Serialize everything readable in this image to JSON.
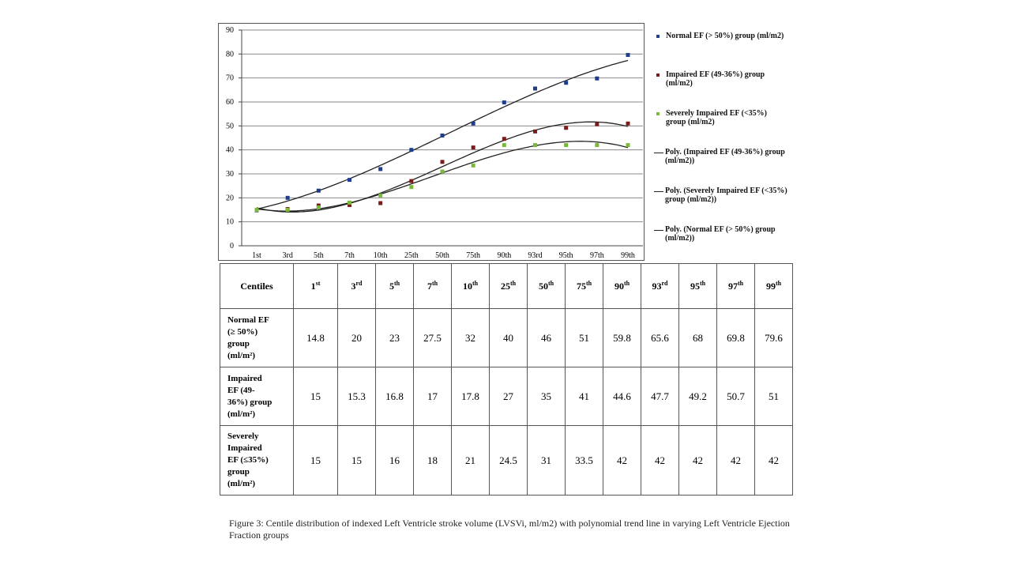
{
  "chart_data": {
    "type": "scatter",
    "categories": [
      "1st",
      "3rd",
      "5th",
      "7th",
      "10th",
      "25th",
      "50th",
      "75th",
      "90th",
      "93rd",
      "95th",
      "97th",
      "99th"
    ],
    "ylim": [
      0,
      90
    ],
    "yticks": [
      0,
      10,
      20,
      30,
      40,
      50,
      60,
      70,
      80,
      90
    ],
    "grid": true,
    "legend_position": "right",
    "series": [
      {
        "name": "Normal EF (> 50%) group (ml/m2)",
        "color": "#1f3d8f",
        "values": [
          14.8,
          20,
          23,
          27.5,
          32,
          40,
          46,
          51,
          59.8,
          65.6,
          68,
          69.8,
          79.6
        ]
      },
      {
        "name": "Impaired EF (49-36%) group (ml/m2)",
        "color": "#7b1c1c",
        "values": [
          15,
          15.3,
          16.8,
          17,
          17.8,
          27,
          35,
          41,
          44.6,
          47.7,
          49.2,
          50.7,
          51
        ]
      },
      {
        "name": "Severely Impaired EF (<35%) group (ml/m2)",
        "color": "#7ab83a",
        "values": [
          15,
          15,
          16,
          18,
          21,
          24.5,
          31,
          33.5,
          42,
          42,
          42,
          42,
          42
        ]
      }
    ],
    "trendlines": [
      {
        "name": "Poly. (Impaired EF (49-36%) group (ml/m2))",
        "color": "#222222"
      },
      {
        "name": "Poly. (Severely Impaired EF (<35%) group (ml/m2))",
        "color": "#222222"
      },
      {
        "name": "Poly. (Normal EF (> 50%) group (ml/m2))",
        "color": "#222222"
      }
    ]
  },
  "table": {
    "corner": "Centiles",
    "headers": [
      {
        "num": "1",
        "sup": "st"
      },
      {
        "num": "3",
        "sup": "rd"
      },
      {
        "num": "5",
        "sup": "th"
      },
      {
        "num": "7",
        "sup": "th"
      },
      {
        "num": "10",
        "sup": "th"
      },
      {
        "num": "25",
        "sup": "th"
      },
      {
        "num": "50",
        "sup": "th"
      },
      {
        "num": "75",
        "sup": "th"
      },
      {
        "num": "90",
        "sup": "th"
      },
      {
        "num": "93",
        "sup": "rd"
      },
      {
        "num": "95",
        "sup": "th"
      },
      {
        "num": "97",
        "sup": "th"
      },
      {
        "num": "99",
        "sup": "th"
      }
    ],
    "rows": [
      {
        "label_lines": [
          "Normal EF",
          "(≥ 50%)",
          "group",
          "(ml/m²)"
        ],
        "values": [
          "14.8",
          "20",
          "23",
          "27.5",
          "32",
          "40",
          "46",
          "51",
          "59.8",
          "65.6",
          "68",
          "69.8",
          "79.6"
        ]
      },
      {
        "label_lines": [
          "Impaired",
          "EF (49-",
          "36%) group",
          "(ml/m²)"
        ],
        "values": [
          "15",
          "15.3",
          "16.8",
          "17",
          "17.8",
          "27",
          "35",
          "41",
          "44.6",
          "47.7",
          "49.2",
          "50.7",
          "51"
        ]
      },
      {
        "label_lines": [
          "Severely",
          "Impaired",
          "EF (≤35%)",
          "group",
          "(ml/m²)"
        ],
        "values": [
          "15",
          "15",
          "16",
          "18",
          "21",
          "24.5",
          "31",
          "33.5",
          "42",
          "42",
          "42",
          "42",
          "42"
        ]
      }
    ]
  },
  "caption": "Figure 3: Centile distribution of indexed Left Ventricle stroke volume (LVSVi, ml/m2) with polynomial trend line in varying Left Ventricle Ejection Fraction groups"
}
